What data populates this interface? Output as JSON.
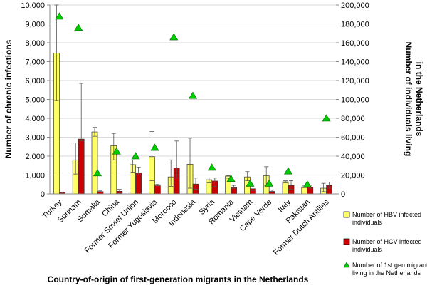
{
  "chart_data": {
    "type": "bar",
    "xlabel": "Country-of-origin of first-generation migrants in the Netherlands",
    "ylabel_left": "Number of chronic infections",
    "ylabel_right_line1": "Number of individuals living",
    "ylabel_right_line2": "in the Netherlands",
    "ylim_left": [
      0,
      10000
    ],
    "ylim_right": [
      0,
      200000
    ],
    "left_ticks": [
      "0",
      "1,000",
      "2,000",
      "3,000",
      "4,000",
      "5,000",
      "6,000",
      "7,000",
      "8,000",
      "9,000",
      "10,000"
    ],
    "right_ticks": [
      "0",
      "20,000",
      "40,000",
      "60,000",
      "80,000",
      "100,000",
      "120,000",
      "140,000",
      "160,000",
      "180,000",
      "200,000"
    ],
    "categories": [
      "Turkey",
      "Surinam",
      "Somalia",
      "China",
      "Former Soviet Union",
      "Former Yugoslavia",
      "Morocco",
      "Indonesia",
      "Syria",
      "Romania",
      "Vietnam",
      "Cape Verde",
      "Italy",
      "Pakistan",
      "Former Dutch Antilles"
    ],
    "series": [
      {
        "name": "Number of HBV infected individuals",
        "legend_line1": "Number of HBV infected",
        "legend_line2": "individuals",
        "color": "#FFFF66",
        "values": [
          7450,
          1800,
          3280,
          2550,
          1550,
          1970,
          900,
          1570,
          750,
          940,
          900,
          960,
          640,
          350,
          300
        ],
        "error_low": [
          4950,
          1050,
          3050,
          1800,
          1150,
          700,
          400,
          300,
          580,
          830,
          700,
          420,
          580,
          330,
          120
        ],
        "error_high": [
          10000,
          2700,
          3520,
          3200,
          1800,
          3300,
          1800,
          2950,
          850,
          970,
          1180,
          1440,
          700,
          420,
          560
        ]
      },
      {
        "name": "Number of HCV infected individuals",
        "legend_line1": "Number of HCV infected",
        "legend_line2": "individuals",
        "color": "#CC0000",
        "values": [
          80,
          2900,
          120,
          140,
          1120,
          430,
          1380,
          520,
          680,
          350,
          270,
          130,
          440,
          350,
          440
        ],
        "error_low": [
          40,
          2800,
          90,
          30,
          1000,
          360,
          840,
          240,
          400,
          300,
          180,
          100,
          250,
          300,
          300
        ],
        "error_high": [
          100,
          5850,
          160,
          240,
          1420,
          500,
          2800,
          840,
          840,
          450,
          480,
          200,
          700,
          420,
          620
        ]
      },
      {
        "name": "Number of 1st gen migrants living in the Netherlands",
        "legend_line1": "Number of 1st gen migrants",
        "legend_line2": "living in the Netherlands",
        "color": "#00CC00",
        "axis": "right",
        "values": [
          188000,
          176000,
          22000,
          45000,
          40000,
          49000,
          166000,
          104000,
          28000,
          16000,
          11000,
          11000,
          24000,
          10000,
          80000
        ]
      }
    ]
  }
}
